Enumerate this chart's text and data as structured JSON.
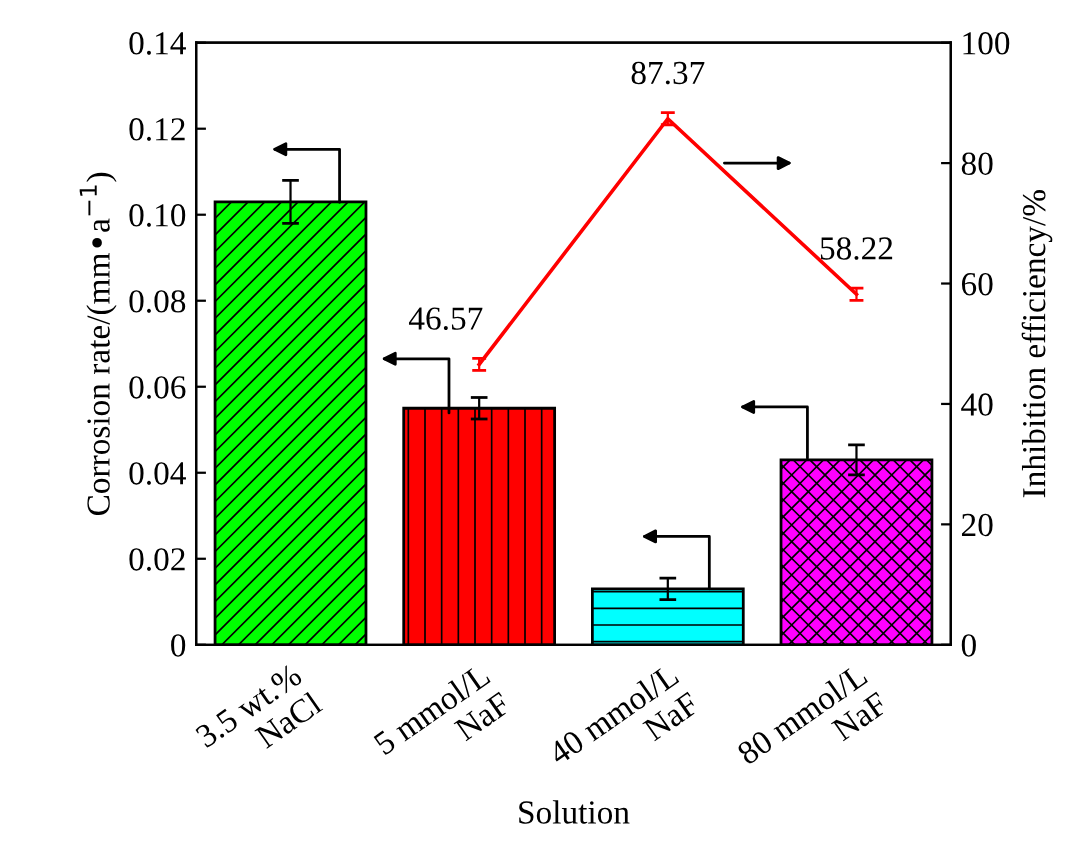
{
  "chart_data": {
    "type": "bar",
    "categories": [
      "3.5 wt.%\nNaCl",
      "5 mmol/L\nNaF",
      "40 mmol/L\nNaF",
      "80 mmol/L\nNaF"
    ],
    "xlabel": "Solution",
    "ylabel": "Corrosion rate/(mm•a$^{−1}$)",
    "y2label": "Inhibition efficiency/%",
    "series": [
      {
        "type": "bar",
        "colors": [
          "#00ff00",
          "#ff0000",
          "#00ffff",
          "#ff00ff"
        ],
        "values": [
          0.103,
          0.055,
          0.013,
          0.043
        ],
        "errors": [
          0.005,
          0.0025,
          0.0025,
          0.0035
        ]
      },
      {
        "type": "line",
        "axis": "y2",
        "color": "#ff0000",
        "values": [
          null,
          46.57,
          87.37,
          58.22
        ],
        "errors": [
          null,
          1,
          1,
          1
        ],
        "value_labels": [
          null,
          "46.57",
          "87.37",
          "58.22"
        ]
      }
    ],
    "ylim": [
      0,
      0.14
    ],
    "yticks": [
      0,
      0.02,
      0.04,
      0.06,
      0.08,
      {
        "value": 0.1,
        "label": "0.10"
      },
      0.12,
      0.14
    ],
    "y2lim": [
      0,
      100
    ],
    "y2ticks": [
      0,
      20,
      40,
      60,
      80,
      100
    ],
    "grid": false,
    "legend": false
  }
}
